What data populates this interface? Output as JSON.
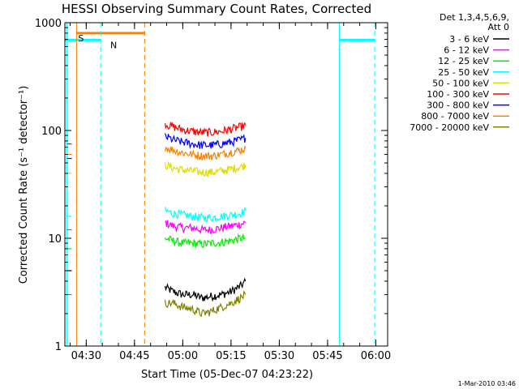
{
  "chart_data": {
    "type": "line",
    "title": "HESSI Observing Summary Count Rates, Corrected",
    "xlabel": "Start Time (05-Dec-07 04:23:22)",
    "ylabel": "Corrected Count Rate (s⁻¹ detector⁻¹)",
    "x_range": [
      "04:23:22",
      "06:03:40"
    ],
    "y_scale": "log",
    "ylim": [
      1,
      1000
    ],
    "x_ticks": [
      "04:30",
      "04:45",
      "05:00",
      "05:15",
      "05:30",
      "05:45",
      "06:00"
    ],
    "y_ticks": [
      "1",
      "10",
      "100",
      "1000"
    ],
    "legend_header": [
      "Det 1,3,4,5,6,9,",
      "Att 0"
    ],
    "legend_placement": "right",
    "timestamp": "1-Mar-2010 03:46",
    "series": [
      {
        "name": "3 - 6 keV",
        "color": "#000000",
        "segments": [
          {
            "t": [
              "04:24:00",
              "04:25:30"
            ],
            "values": [
              5,
              5
            ]
          },
          {
            "t": [
              "04:54:30",
              "04:57:00",
              "05:00:00",
              "05:03:00",
              "05:06:00",
              "05:09:00",
              "05:12:00",
              "05:15:00",
              "05:18:00",
              "05:19:30"
            ],
            "values": [
              3.5,
              3.2,
              3.0,
              3.0,
              2.8,
              2.9,
              3.0,
              3.2,
              3.6,
              4.0
            ]
          }
        ]
      },
      {
        "name": "6 - 12 keV",
        "color": "#ff00ff",
        "segments": [
          {
            "t": [
              "04:24:00",
              "04:25:30"
            ],
            "values": [
              12,
              12
            ]
          },
          {
            "t": [
              "04:54:30",
              "04:57:00",
              "05:00:00",
              "05:03:00",
              "05:06:00",
              "05:09:00",
              "05:12:00",
              "05:15:00",
              "05:18:00",
              "05:19:30"
            ],
            "values": [
              14,
              13,
              12.5,
              12.5,
              12,
              12,
              12.5,
              13,
              13.5,
              14
            ]
          }
        ]
      },
      {
        "name": "12 - 25 keV",
        "color": "#00ee00",
        "segments": [
          {
            "t": [
              "04:24:00",
              "04:25:30"
            ],
            "values": [
              8,
              8
            ]
          },
          {
            "t": [
              "04:54:30",
              "04:57:00",
              "05:00:00",
              "05:03:00",
              "05:06:00",
              "05:09:00",
              "05:12:00",
              "05:15:00",
              "05:18:00",
              "05:19:30"
            ],
            "values": [
              10,
              9.5,
              9.0,
              9.0,
              8.8,
              9.0,
              9.2,
              9.5,
              10,
              10
            ]
          }
        ]
      },
      {
        "name": "25 - 50 keV",
        "color": "#00ffff",
        "segments": [
          {
            "t": [
              "04:24:00",
              "04:25:30"
            ],
            "values": [
              16,
              16
            ]
          },
          {
            "t": [
              "04:54:30",
              "04:57:00",
              "05:00:00",
              "05:03:00",
              "05:06:00",
              "05:09:00",
              "05:12:00",
              "05:15:00",
              "05:18:00",
              "05:19:30"
            ],
            "values": [
              18,
              17,
              16.5,
              16,
              15.5,
              15.5,
              16,
              16.5,
              17,
              18
            ]
          }
        ]
      },
      {
        "name": "50 - 100 keV",
        "color": "#dddd00",
        "segments": [
          {
            "t": [
              "04:24:00",
              "04:25:30"
            ],
            "values": [
              40,
              40
            ]
          },
          {
            "t": [
              "04:54:30",
              "04:57:00",
              "05:00:00",
              "05:03:00",
              "05:06:00",
              "05:09:00",
              "05:12:00",
              "05:15:00",
              "05:18:00",
              "05:19:30"
            ],
            "values": [
              48,
              45,
              43,
              42,
              41,
              41,
              42,
              44,
              46,
              48
            ]
          }
        ]
      },
      {
        "name": "100 - 300 keV",
        "color": "#ff0000",
        "segments": [
          {
            "t": [
              "04:24:00",
              "04:25:30"
            ],
            "values": [
              75,
              75
            ]
          },
          {
            "t": [
              "04:54:30",
              "04:57:00",
              "05:00:00",
              "05:03:00",
              "05:06:00",
              "05:09:00",
              "05:12:00",
              "05:15:00",
              "05:18:00",
              "05:19:30"
            ],
            "values": [
              115,
              108,
              102,
              98,
              96,
              96,
              98,
              103,
              108,
              112
            ]
          }
        ]
      },
      {
        "name": "300 - 800 keV",
        "color": "#0000ff",
        "segments": [
          {
            "t": [
              "04:24:00",
              "04:25:30"
            ],
            "values": [
              55,
              55
            ]
          },
          {
            "t": [
              "04:54:30",
              "04:57:00",
              "05:00:00",
              "05:03:00",
              "05:06:00",
              "05:09:00",
              "05:12:00",
              "05:15:00",
              "05:18:00",
              "05:19:30"
            ],
            "values": [
              88,
              82,
              78,
              75,
              73,
              73,
              75,
              78,
              82,
              85
            ]
          }
        ]
      },
      {
        "name": "800 - 7000 keV",
        "color": "#ff8000",
        "segments": [
          {
            "t": [
              "04:24:00",
              "04:25:30"
            ],
            "values": [
              60,
              60
            ]
          },
          {
            "t": [
              "04:54:30",
              "04:57:00",
              "05:00:00",
              "05:03:00",
              "05:06:00",
              "05:09:00",
              "05:12:00",
              "05:15:00",
              "05:18:00",
              "05:19:30"
            ],
            "values": [
              70,
              66,
              62,
              60,
              58,
              58,
              60,
              63,
              66,
              68
            ]
          }
        ]
      },
      {
        "name": "7000 - 20000 keV",
        "color": "#808000",
        "segments": [
          {
            "t": [
              "04:24:00",
              "04:25:30"
            ],
            "values": [
              3,
              3
            ]
          },
          {
            "t": [
              "04:54:30",
              "04:57:00",
              "05:00:00",
              "05:03:00",
              "05:06:00",
              "05:09:00",
              "05:12:00",
              "05:15:00",
              "05:18:00",
              "05:19:30"
            ],
            "values": [
              2.5,
              2.5,
              2.3,
              2.2,
              2.0,
              2.1,
              2.3,
              2.5,
              2.8,
              3.0
            ]
          }
        ]
      }
    ],
    "vertical_lines": [
      {
        "t": "04:24:00",
        "color": "#00ffff",
        "style": "solid"
      },
      {
        "t": "04:34:30",
        "color": "#00ffff",
        "style": "dashed"
      },
      {
        "t": "05:48:40",
        "color": "#00ffff",
        "style": "solid"
      },
      {
        "t": "05:59:40",
        "color": "#00ffff",
        "style": "dashed"
      },
      {
        "t": "04:27:00",
        "color": "#ff8000",
        "style": "solid"
      },
      {
        "t": "04:48:10",
        "color": "#ff8000",
        "style": "dashed"
      }
    ],
    "interval_bars": [
      {
        "label": "N",
        "color": "#00ffff",
        "t": [
          "04:23:22",
          "04:34:30"
        ],
        "y": 690
      },
      {
        "label": "",
        "color": "#00ffff",
        "t": [
          "05:48:40",
          "05:59:40"
        ],
        "y": 690
      },
      {
        "label": "S",
        "color": "#ff8000",
        "t": [
          "04:27:00",
          "04:48:10"
        ],
        "y": 800
      }
    ]
  }
}
